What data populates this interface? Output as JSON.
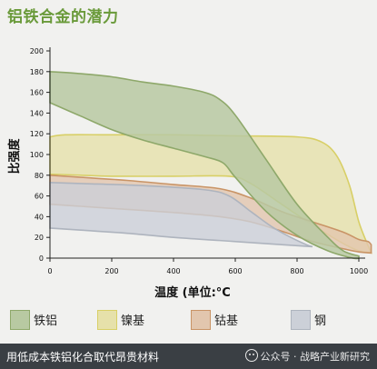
{
  "title": "铝铁合金的潜力",
  "chart_data": {
    "type": "area",
    "xlabel": "温度 (单位:°C",
    "ylabel": "比强度",
    "xlim": [
      0,
      1050
    ],
    "ylim": [
      0,
      200
    ],
    "x_ticks": [
      0,
      200,
      400,
      600,
      800,
      1000
    ],
    "y_ticks": [
      0,
      20,
      40,
      60,
      80,
      100,
      120,
      140,
      160,
      180,
      200
    ],
    "grid": false,
    "legend": "bottom",
    "series": [
      {
        "name": "铁铝",
        "fill": "#b8c9a2",
        "stroke": "#8ea86a",
        "upper": [
          [
            0,
            180
          ],
          [
            100,
            178
          ],
          [
            200,
            175
          ],
          [
            300,
            170
          ],
          [
            400,
            166
          ],
          [
            500,
            160
          ],
          [
            550,
            153
          ],
          [
            600,
            138
          ],
          [
            700,
            95
          ],
          [
            800,
            52
          ],
          [
            900,
            20
          ],
          [
            950,
            7
          ],
          [
            1000,
            2
          ]
        ],
        "lower": [
          [
            0,
            150
          ],
          [
            100,
            137
          ],
          [
            200,
            124
          ],
          [
            300,
            114
          ],
          [
            400,
            106
          ],
          [
            500,
            98
          ],
          [
            560,
            92
          ],
          [
            600,
            78
          ],
          [
            700,
            45
          ],
          [
            800,
            22
          ],
          [
            900,
            7
          ],
          [
            980,
            0
          ],
          [
            1000,
            0
          ]
        ]
      },
      {
        "name": "镍基",
        "fill": "#e6e1aa",
        "stroke": "#d8cf66",
        "upper": [
          [
            0,
            117
          ],
          [
            50,
            119
          ],
          [
            200,
            119
          ],
          [
            400,
            119
          ],
          [
            600,
            118
          ],
          [
            800,
            117
          ],
          [
            880,
            112
          ],
          [
            930,
            98
          ],
          [
            970,
            70
          ],
          [
            1000,
            35
          ],
          [
            1030,
            12
          ],
          [
            1040,
            5
          ]
        ],
        "lower": [
          [
            0,
            81
          ],
          [
            100,
            80
          ],
          [
            200,
            79
          ],
          [
            400,
            79
          ],
          [
            580,
            79
          ],
          [
            650,
            72
          ],
          [
            750,
            52
          ],
          [
            850,
            32
          ],
          [
            950,
            14
          ],
          [
            1000,
            7
          ],
          [
            1040,
            5
          ]
        ]
      },
      {
        "name": "钴基",
        "fill": "#e2c6ae",
        "stroke": "#c99466",
        "upper": [
          [
            0,
            80
          ],
          [
            100,
            78
          ],
          [
            250,
            75
          ],
          [
            400,
            71
          ],
          [
            550,
            67
          ],
          [
            650,
            58
          ],
          [
            750,
            45
          ],
          [
            850,
            35
          ],
          [
            950,
            25
          ],
          [
            1000,
            18
          ],
          [
            1030,
            16
          ],
          [
            1040,
            13
          ]
        ],
        "lower": [
          [
            0,
            52
          ],
          [
            100,
            50
          ],
          [
            200,
            48
          ],
          [
            400,
            44
          ],
          [
            550,
            40
          ],
          [
            650,
            35
          ],
          [
            750,
            26
          ],
          [
            850,
            16
          ],
          [
            950,
            9
          ],
          [
            1000,
            6
          ],
          [
            1040,
            5
          ]
        ]
      },
      {
        "name": "钢",
        "fill": "#ccd0d8",
        "stroke": "#aeb4be",
        "upper": [
          [
            0,
            73
          ],
          [
            100,
            72
          ],
          [
            300,
            70
          ],
          [
            500,
            66
          ],
          [
            580,
            60
          ],
          [
            650,
            45
          ],
          [
            720,
            30
          ],
          [
            780,
            20
          ],
          [
            830,
            13
          ],
          [
            850,
            11
          ]
        ],
        "lower": [
          [
            0,
            29
          ],
          [
            100,
            27
          ],
          [
            250,
            24
          ],
          [
            400,
            20
          ],
          [
            550,
            17
          ],
          [
            700,
            14
          ],
          [
            800,
            12
          ],
          [
            850,
            11
          ]
        ]
      }
    ]
  },
  "footer": {
    "caption": "用低成本铁铝化合取代昂贵材料",
    "watermark": "公众号 · 战略产业新研究"
  }
}
